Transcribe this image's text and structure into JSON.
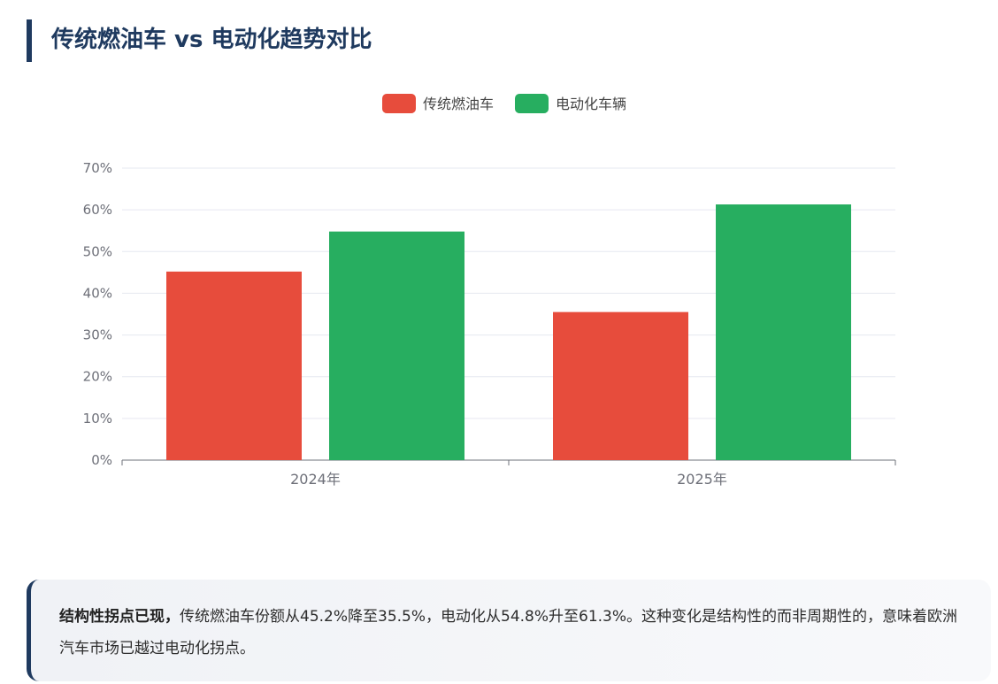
{
  "title": "传统燃油车 vs 电动化趋势对比",
  "chart_data": {
    "type": "bar",
    "categories": [
      "2024年",
      "2025年"
    ],
    "series": [
      {
        "name": "传统燃油车",
        "color": "#e74c3c",
        "values": [
          45.2,
          35.5
        ]
      },
      {
        "name": "电动化车辆",
        "color": "#27ae60",
        "values": [
          54.8,
          61.3
        ]
      }
    ],
    "yticks": [
      "0%",
      "10%",
      "20%",
      "30%",
      "40%",
      "50%",
      "60%",
      "70%"
    ],
    "ylim": [
      0,
      70
    ],
    "grid": true,
    "legend": "top-center"
  },
  "note": {
    "bold": "结构性拐点已现，",
    "text": "传统燃油车份额从45.2%降至35.5%，电动化从54.8%升至61.3%。这种变化是结构性的而非周期性的，意味着欧洲汽车市场已越过电动化拐点。"
  }
}
